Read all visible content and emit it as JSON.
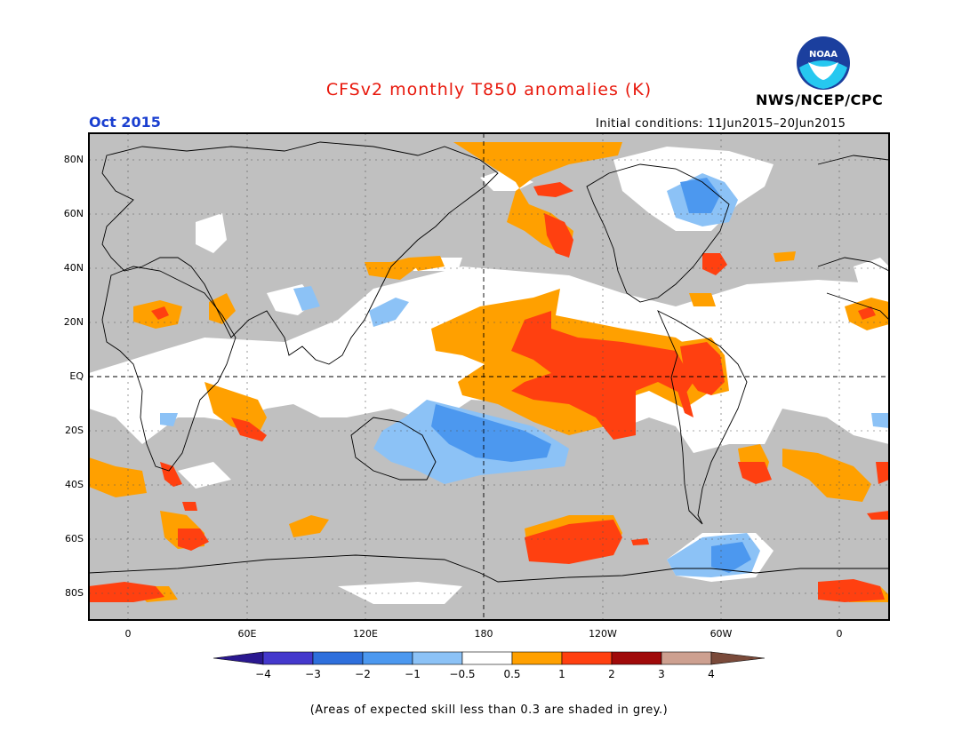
{
  "title": "CFSv2 monthly T850 anomalies (K)",
  "month": "Oct 2015",
  "initial_conditions": "Initial conditions: 11Jun2015–20Jun2015",
  "agency": "NWS/NCEP/CPC",
  "logo_text": "NOAA",
  "footnote": "(Areas of expected skill less than 0.3 are shaded in grey.)",
  "colors": {
    "title": "#e8180c",
    "month": "#1a3fd0",
    "grey": "#c0c0c0",
    "neg4": "#2a1890",
    "neg3": "#4438cc",
    "neg2": "#2e6fdc",
    "neg1": "#4c98ef",
    "neg05": "#8cc2f6",
    "zero": "#ffffff",
    "pos05": "#ffa000",
    "pos1": "#ff4010",
    "pos2": "#a00a0a",
    "pos3": "#cda090",
    "pos4": "#7a4a3a"
  },
  "chart_data": {
    "type": "heatmap",
    "lat_ticks": [
      "80N",
      "60N",
      "40N",
      "20N",
      "EQ",
      "20S",
      "40S",
      "60S",
      "80S"
    ],
    "lon_ticks": [
      "0",
      "60E",
      "120E",
      "180",
      "120W",
      "60W",
      "0"
    ],
    "colorbar": {
      "ticks": [
        "−4",
        "−3",
        "−2",
        "−1",
        "−0.5",
        "0.5",
        "1",
        "2",
        "3",
        "4"
      ],
      "bins": [
        "neg4",
        "neg3",
        "neg2",
        "neg1",
        "neg05",
        "zero",
        "pos05",
        "pos1",
        "pos2",
        "pos3",
        "pos4"
      ]
    },
    "features": [
      {
        "name": "central-eastern-pacific-warm",
        "level": 2,
        "lon": [
          180,
          282
        ],
        "lat": [
          -18,
          25
        ]
      },
      {
        "name": "pacific-warm-surround",
        "level": 1,
        "lon": [
          155,
          285
        ],
        "lat": [
          -22,
          30
        ]
      },
      {
        "name": "south-america-nw-warm",
        "level": 2,
        "lon": [
          282,
          300
        ],
        "lat": [
          -5,
          12
        ]
      },
      {
        "name": "south-pacific-cold",
        "level": -1,
        "lon": [
          150,
          215
        ],
        "lat": [
          -35,
          -10
        ]
      },
      {
        "name": "east-canada-cold",
        "level": -1,
        "lon": [
          285,
          310
        ],
        "lat": [
          55,
          72
        ]
      },
      {
        "name": "bering-warm",
        "level": 2,
        "lon": [
          190,
          225
        ],
        "lat": [
          45,
          75
        ]
      },
      {
        "name": "southern-ocean-warm",
        "level": 2,
        "lon": [
          195,
          245
        ],
        "lat": [
          -70,
          -55
        ]
      },
      {
        "name": "drake-passage-cold",
        "level": -1,
        "lon": [
          280,
          335
        ],
        "lat": [
          -75,
          -60
        ]
      },
      {
        "name": "antarctic-warm-east",
        "level": 2,
        "lon": [
          325,
          375
        ],
        "lat": [
          -85,
          -75
        ]
      },
      {
        "name": "antarctic-warm-west",
        "level": 2,
        "lon": [
          -20,
          15
        ],
        "lat": [
          -85,
          -75
        ]
      }
    ]
  }
}
